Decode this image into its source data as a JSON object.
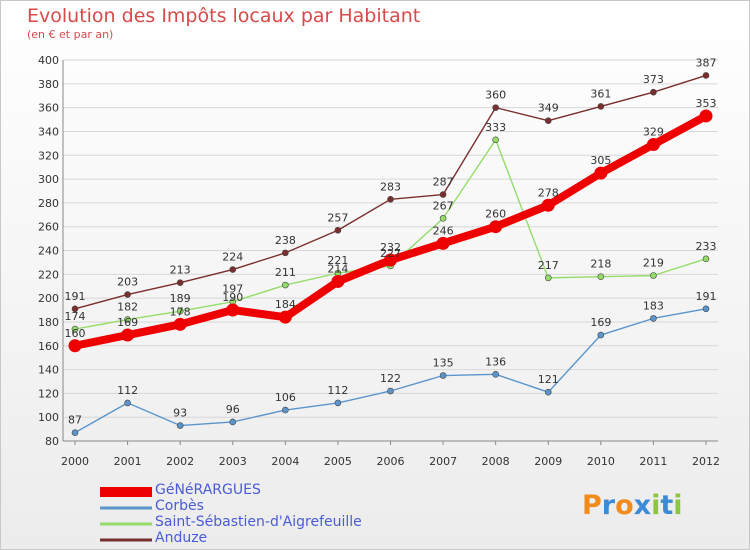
{
  "title": "Evolution des Impôts locaux par Habitant",
  "subtitle": "(en € et par an)",
  "logo": {
    "text": "Proxiti",
    "letters": [
      "P",
      "r",
      "o",
      "x",
      "i",
      "t",
      "i"
    ]
  },
  "colors": {
    "background_top": "#ffffff",
    "background_bottom": "#ececec",
    "title": "#d84a4a",
    "grid": "#d8d8d8",
    "axis_text": "#333333",
    "legend_text": "#4a5bd6"
  },
  "chart_data": {
    "type": "line",
    "x": [
      2000,
      2001,
      2002,
      2003,
      2004,
      2005,
      2006,
      2007,
      2008,
      2009,
      2010,
      2011,
      2012
    ],
    "xlabel": "",
    "ylabel": "",
    "ylim": [
      80,
      400
    ],
    "yticks": [
      80,
      100,
      120,
      140,
      160,
      180,
      200,
      220,
      240,
      260,
      280,
      300,
      320,
      340,
      360,
      380,
      400
    ],
    "grid": "horizontal",
    "legend_position": "bottom-left",
    "series": [
      {
        "name": "GéNéRARGUES",
        "color": "#ee0000",
        "emphasis": true,
        "values": [
          160,
          169,
          178,
          190,
          184,
          214,
          232,
          246,
          260,
          278,
          305,
          329,
          353
        ],
        "labels": [
          "160",
          "169",
          "178",
          "190",
          "184",
          "214",
          "232",
          "246",
          "260",
          "278",
          "305",
          "329",
          "353"
        ]
      },
      {
        "name": "Corbès",
        "color": "#5b95cc",
        "emphasis": false,
        "values": [
          87,
          112,
          93,
          96,
          106,
          112,
          122,
          135,
          136,
          121,
          169,
          183,
          191
        ],
        "labels": [
          "87",
          "112",
          "93",
          "96",
          "106",
          "112",
          "122",
          "135",
          "136",
          "121",
          "169",
          "183",
          "191"
        ]
      },
      {
        "name": "Saint-Sébastien-d'Aigrefeuille",
        "color": "#94dc6a",
        "emphasis": false,
        "values": [
          174,
          182,
          189,
          197,
          211,
          221,
          227,
          267,
          333,
          217,
          218,
          219,
          233
        ],
        "labels": [
          "174",
          "182",
          "189",
          "197",
          "211",
          "221",
          "227",
          "267",
          "333",
          "217",
          "218",
          "219",
          "233"
        ]
      },
      {
        "name": "Anduze",
        "color": "#7a2e2e",
        "emphasis": false,
        "values": [
          191,
          203,
          213,
          224,
          238,
          257,
          283,
          287,
          360,
          349,
          361,
          373,
          387
        ],
        "labels": [
          "191",
          "203",
          "213",
          "224",
          "238",
          "257",
          "283",
          "287",
          "360",
          "349",
          "361",
          "373",
          "387"
        ]
      }
    ]
  }
}
